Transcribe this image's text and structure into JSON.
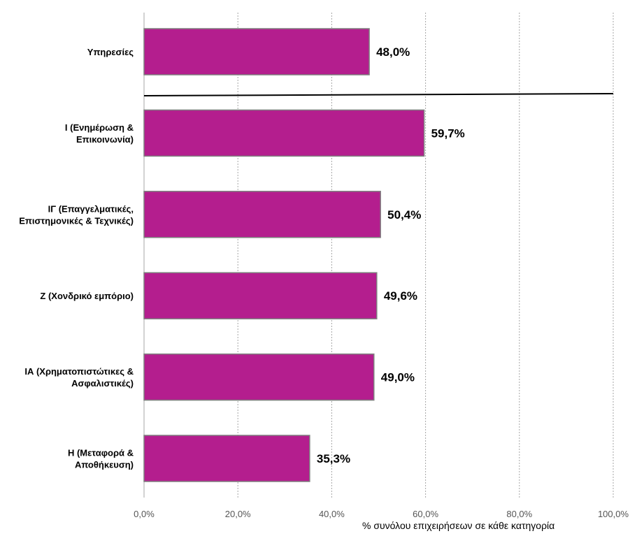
{
  "chart_data": {
    "type": "bar",
    "orientation": "horizontal",
    "categories": [
      [
        "Υπηρεσίες"
      ],
      [
        "Ι (Ενημέρωση &",
        "Επικοινωνία)"
      ],
      [
        "ΙΓ (Επαγγελματικές,",
        "Επιστημονικές & Τεχνικές)"
      ],
      [
        "Ζ (Χονδρικό εμπόριο)"
      ],
      [
        "ΙΑ (Χρηματοπιστώτικες &",
        "Ασφαλιστικές)"
      ],
      [
        "Η (Μεταφορά &",
        "Αποθήκευση)"
      ]
    ],
    "values": [
      48.0,
      59.7,
      50.4,
      49.6,
      49.0,
      35.3
    ],
    "value_labels": [
      "48,0%",
      "59,7%",
      "50,4%",
      "49,6%",
      "49,0%",
      "35,3%"
    ],
    "xlim": [
      0,
      100
    ],
    "xticks": [
      0,
      20,
      40,
      60,
      80,
      100
    ],
    "xtick_labels": [
      "0,0%",
      "20,0%",
      "40,0%",
      "60,0%",
      "80,0%",
      "100,0%"
    ],
    "xlabel": "% συνόλου επιχειρήσεων σε κάθε κατηγορία",
    "title": "",
    "grid": "vertical dotted",
    "legend": "none",
    "separator_after_index": 0,
    "colors": {
      "bar_fill": "#b41e8e",
      "bar_stroke": "#7f7f7f",
      "grid": "#a6a6a6",
      "separator": "#000000"
    }
  }
}
